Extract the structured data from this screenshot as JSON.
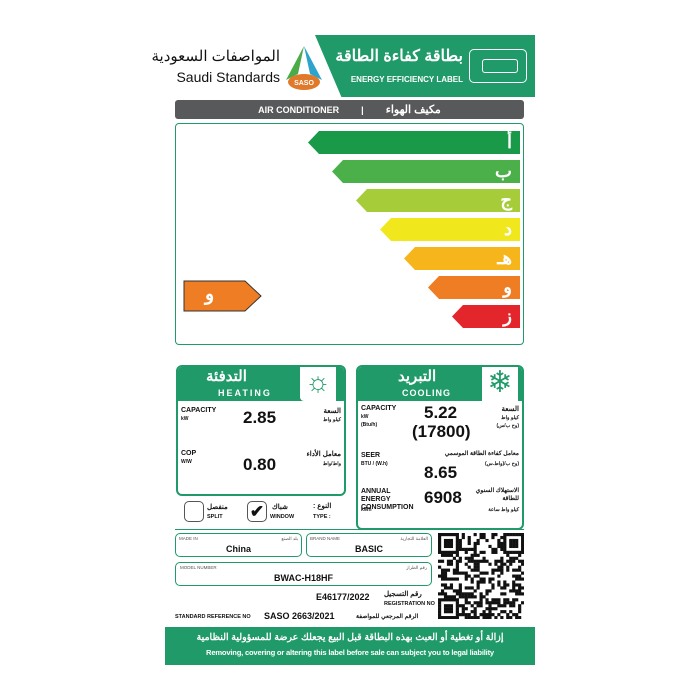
{
  "header": {
    "org_ar": "المواصفات السعودية",
    "org_en": "Saudi Standards",
    "logo_text": "SASO",
    "title_ar": "بطاقة كفاءة الطاقة",
    "title_en": "ENERGY EFFICIENCY LABEL",
    "icon": "air-conditioner-icon"
  },
  "product": {
    "en": "AIR CONDITIONER",
    "sep": "|",
    "ar": "مكيف الهواء"
  },
  "rating": {
    "grades": [
      "أ",
      "ب",
      "ج",
      "د",
      "هـ",
      "و",
      "ز"
    ],
    "colors": [
      "#1a9a48",
      "#4cb04a",
      "#a6cd39",
      "#f0e81d",
      "#f7b51c",
      "#ee7d24",
      "#e3262c"
    ],
    "current": "و",
    "current_color": "#ee7d24"
  },
  "heating": {
    "title_ar": "التدفئة",
    "title_en": "HEATING",
    "icon": "sun-icon",
    "capacity_label": "CAPACITY",
    "capacity_unit": "kW",
    "capacity_ar": "السعة",
    "capacity_unit_ar": "كيلو واط",
    "capacity": "2.85",
    "cop_label": "COP",
    "cop_unit": "W/W",
    "cop_ar": "معامل الأداء",
    "cop_unit_ar": "واط/واط",
    "cop": "0.80"
  },
  "cooling": {
    "title_ar": "التبريد",
    "title_en": "COOLING",
    "icon": "snowflake-icon",
    "capacity_label": "CAPACITY",
    "capacity_unit": "kW",
    "capacity_unit2": "(Btu/h)",
    "capacity_ar": "السعة",
    "capacity_unit_ar": "كيلو واط",
    "capacity_unit2_ar": "(وح ب/س)",
    "capacity_kw": "5.22",
    "capacity_btu": "(17800)",
    "seer_label": "SEER",
    "seer_unit": "BTU / (W.h)",
    "seer_ar": "معامل كفاءة الطاقة الموسمي",
    "seer_unit_ar": "(وح ب/(واط.س)",
    "seer": "8.65",
    "annual_label": "ANNUAL ENERGY CONSUMPTION",
    "annual_unit": "kWh",
    "annual_ar": "الاستهلاك السنوي للطاقة",
    "annual_unit_ar": "كيلو واط ساعة",
    "annual": "6908"
  },
  "type": {
    "label_ar": "النوع :",
    "label_en": "TYPE :",
    "split_ar": "منفصل",
    "split_en": "SPLIT",
    "window_ar": "شباك",
    "window_en": "WINDOW",
    "split_checked": false,
    "window_checked": true
  },
  "info": {
    "made_in_label": "MADE IN",
    "made_in_ar": "بلد الصنع",
    "made_in": "China",
    "brand_label": "BRAND NAME",
    "brand_ar": "العلامة التجارية",
    "brand": "BASIC",
    "model_label": "MODEL NUMBER",
    "model_ar": "رقم الطراز",
    "model": "BWAC-H18HF",
    "reg_ar": "رقم التسجيل",
    "reg_en": "REGISTRATION NO",
    "reg": "E46177/2022",
    "std_en": "STANDARD REFERENCE NO",
    "std": "SASO 2663/2021",
    "std_ar": "الرقم المرجعي للمواصفة"
  },
  "footer": {
    "ar": "إزالة أو تغطية أو العبث بهذه البطاقة قبل البيع يجعلك عرضة للمسؤولية النظامية",
    "en": "Removing, covering or altering this label before sale can subject you to legal liability"
  }
}
